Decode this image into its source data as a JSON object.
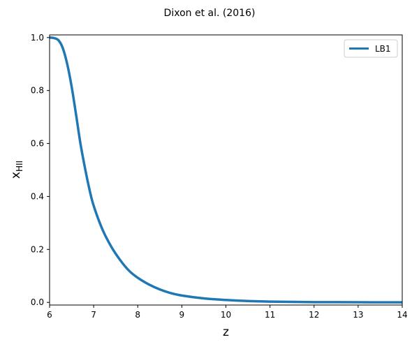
{
  "chart_data": {
    "type": "line",
    "title": "Dixon et al. (2016)",
    "xlabel": "z",
    "ylabel": {
      "main": "x",
      "sub": "HII"
    },
    "xlim": [
      6,
      14
    ],
    "ylim": [
      -0.01,
      1.01
    ],
    "xticks": [
      "6",
      "7",
      "8",
      "9",
      "10",
      "11",
      "12",
      "13",
      "14"
    ],
    "yticks": [
      "0.0",
      "0.2",
      "0.4",
      "0.6",
      "0.8",
      "1.0"
    ],
    "grid": false,
    "legend_position": "top-right",
    "series": [
      {
        "name": "LB1",
        "color": "#1f77b4",
        "x": [
          6.0,
          6.1,
          6.2,
          6.3,
          6.4,
          6.5,
          6.6,
          6.7,
          6.8,
          6.9,
          7.0,
          7.2,
          7.4,
          7.6,
          7.8,
          8.0,
          8.25,
          8.5,
          8.75,
          9.0,
          9.5,
          10.0,
          10.5,
          11.0,
          11.5,
          12.0,
          12.5,
          13.0,
          13.5,
          14.0
        ],
        "y": [
          1.0,
          0.998,
          0.99,
          0.96,
          0.9,
          0.815,
          0.71,
          0.6,
          0.51,
          0.43,
          0.365,
          0.275,
          0.21,
          0.16,
          0.12,
          0.093,
          0.068,
          0.049,
          0.035,
          0.026,
          0.015,
          0.009,
          0.005,
          0.003,
          0.002,
          0.001,
          0.0008,
          0.0005,
          0.0003,
          0.0002
        ]
      }
    ]
  }
}
